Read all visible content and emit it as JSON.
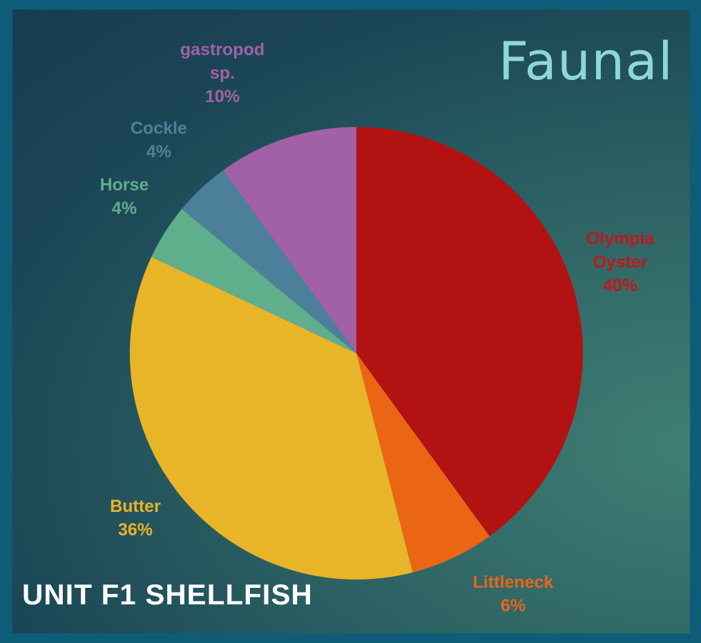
{
  "slide": {
    "heading": "Faunal",
    "subtitle": "UNIT F1 SHELLFISH"
  },
  "chart_data": {
    "type": "pie",
    "title": "",
    "slices": [
      {
        "label": [
          "Olympia",
          "Oyster"
        ],
        "value": 40,
        "percent_text": "40%",
        "color": "#b31212"
      },
      {
        "label": [
          "Littleneck"
        ],
        "value": 6,
        "percent_text": "6%",
        "color": "#ea6614"
      },
      {
        "label": [
          "Butter"
        ],
        "value": 36,
        "percent_text": "36%",
        "color": "#e8b428"
      },
      {
        "label": [
          "Horse"
        ],
        "value": 4,
        "percent_text": "4%",
        "color": "#5fae8c"
      },
      {
        "label": [
          "Cockle"
        ],
        "value": 4,
        "percent_text": "4%",
        "color": "#4c809a"
      },
      {
        "label": [
          "gastropod",
          "sp."
        ],
        "value": 10,
        "percent_text": "10%",
        "color": "#a260a6"
      }
    ],
    "legend": "none",
    "data_labels": "outside"
  }
}
